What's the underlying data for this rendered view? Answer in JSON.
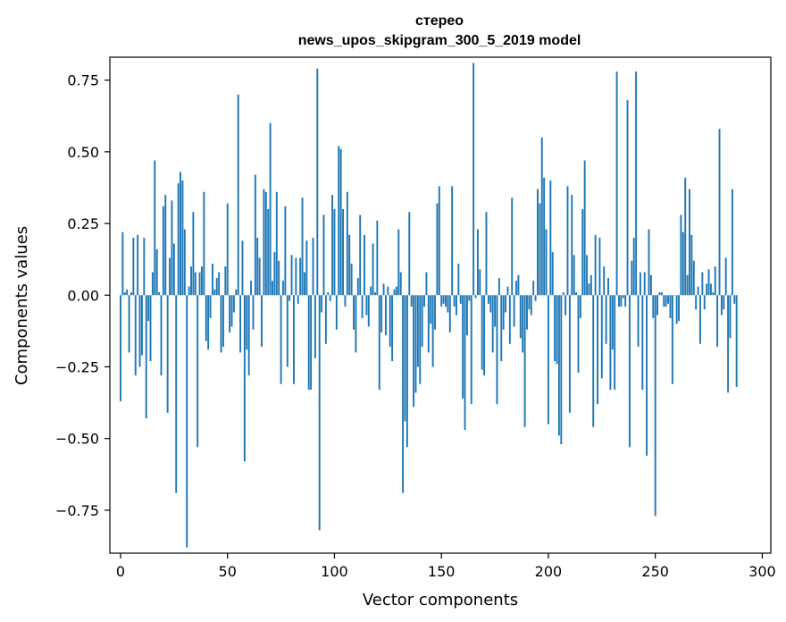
{
  "chart_data": {
    "type": "bar",
    "title": "стерео",
    "subtitle": "news_upos_skipgram_300_5_2019 model",
    "xlabel": "Vector components",
    "ylabel": "Components values",
    "xlim": [
      -5,
      304
    ],
    "ylim": [
      -0.9,
      0.83
    ],
    "xticks": [
      0,
      50,
      100,
      150,
      200,
      250,
      300
    ],
    "xtick_labels": [
      "0",
      "50",
      "100",
      "150",
      "200",
      "250",
      "300"
    ],
    "yticks": [
      -0.75,
      -0.5,
      -0.25,
      0.0,
      0.25,
      0.5,
      0.75
    ],
    "ytick_labels": [
      "−0.75",
      "−0.50",
      "−0.25",
      "0.00",
      "0.25",
      "0.50",
      "0.75"
    ],
    "color": "#1f77b4",
    "values": [
      -0.37,
      0.22,
      0.01,
      0.02,
      -0.2,
      0.01,
      0.2,
      -0.28,
      0.21,
      -0.25,
      -0.21,
      0.2,
      -0.43,
      -0.09,
      -0.23,
      0.08,
      0.47,
      0.16,
      0.01,
      -0.28,
      0.31,
      0.35,
      -0.41,
      0.13,
      0.33,
      0.18,
      -0.69,
      0.39,
      0.43,
      0.4,
      0.23,
      -0.88,
      0.03,
      0.1,
      0.29,
      0.08,
      -0.53,
      0.08,
      0.1,
      0.36,
      -0.16,
      -0.19,
      -0.08,
      0.11,
      0.02,
      0.06,
      0.08,
      -0.2,
      -0.18,
      0.1,
      0.32,
      -0.13,
      -0.11,
      -0.06,
      0.02,
      0.7,
      -0.2,
      0.19,
      -0.58,
      -0.19,
      -0.28,
      0.05,
      -0.12,
      0.42,
      0.2,
      0.13,
      -0.18,
      0.37,
      0.36,
      0.3,
      0.6,
      0.05,
      0.15,
      0.36,
      0.12,
      -0.31,
      0.05,
      0.31,
      -0.25,
      -0.02,
      0.14,
      -0.31,
      0.13,
      -0.03,
      0.13,
      0.34,
      0.08,
      0.19,
      -0.33,
      -0.33,
      0.2,
      -0.22,
      0.79,
      -0.82,
      -0.06,
      0.28,
      -0.17,
      0.01,
      -0.02,
      0.35,
      0.3,
      -0.12,
      0.52,
      0.51,
      0.3,
      -0.04,
      0.36,
      0.21,
      0.11,
      -0.12,
      -0.2,
      0.06,
      0.28,
      -0.08,
      0.21,
      -0.07,
      -0.11,
      0.03,
      0.18,
      0.01,
      0.26,
      -0.33,
      -0.13,
      0.04,
      -0.14,
      0.03,
      -0.18,
      -0.23,
      0.02,
      0.03,
      0.23,
      0.08,
      -0.69,
      -0.44,
      -0.53,
      0.29,
      -0.04,
      -0.39,
      -0.34,
      -0.25,
      -0.31,
      -0.18,
      -0.04,
      0.08,
      -0.2,
      -0.1,
      -0.25,
      -0.12,
      0.32,
      0.38,
      -0.04,
      -0.03,
      -0.04,
      -0.06,
      -0.13,
      0.38,
      -0.04,
      -0.07,
      0.11,
      -0.03,
      -0.36,
      -0.47,
      -0.14,
      -0.02,
      -0.38,
      0.81,
      -0.01,
      0.23,
      0.09,
      -0.26,
      -0.28,
      0.29,
      -0.03,
      -0.06,
      -0.2,
      -0.11,
      -0.38,
      0.06,
      -0.23,
      -0.12,
      -0.06,
      0.03,
      -0.17,
      0.34,
      -0.11,
      0.05,
      0.07,
      -0.15,
      -0.2,
      -0.46,
      -0.12,
      -0.05,
      -0.07,
      0.05,
      -0.02,
      0.37,
      0.32,
      0.55,
      0.41,
      0.23,
      -0.45,
      0.4,
      0.15,
      -0.23,
      -0.24,
      -0.49,
      -0.52,
      0.01,
      -0.07,
      0.38,
      -0.41,
      0.35,
      0.14,
      0.01,
      -0.27,
      -0.08,
      0.3,
      0.47,
      0.14,
      0.04,
      0.07,
      -0.46,
      0.21,
      -0.38,
      0.2,
      -0.29,
      0.1,
      -0.17,
      0.06,
      -0.33,
      -0.19,
      -0.33,
      0.78,
      -0.04,
      -0.04,
      -0.01,
      -0.04,
      0.68,
      -0.53,
      0.12,
      0.2,
      0.78,
      -0.18,
      0.08,
      -0.33,
      0.08,
      -0.56,
      0.23,
      0.07,
      -0.08,
      -0.77,
      -0.07,
      0.01,
      0.01,
      -0.04,
      -0.04,
      -0.03,
      -0.08,
      -0.31,
      0.0,
      -0.1,
      -0.09,
      0.28,
      0.22,
      0.41,
      0.07,
      0.37,
      0.21,
      0.12,
      -0.05,
      0.03,
      -0.17,
      0.08,
      -0.05,
      0.04,
      0.09,
      0.04,
      0.01,
      0.1,
      -0.18,
      0.58,
      -0.07,
      -0.05,
      0.13,
      -0.34,
      -0.15,
      0.37,
      -0.03,
      -0.32
    ]
  }
}
